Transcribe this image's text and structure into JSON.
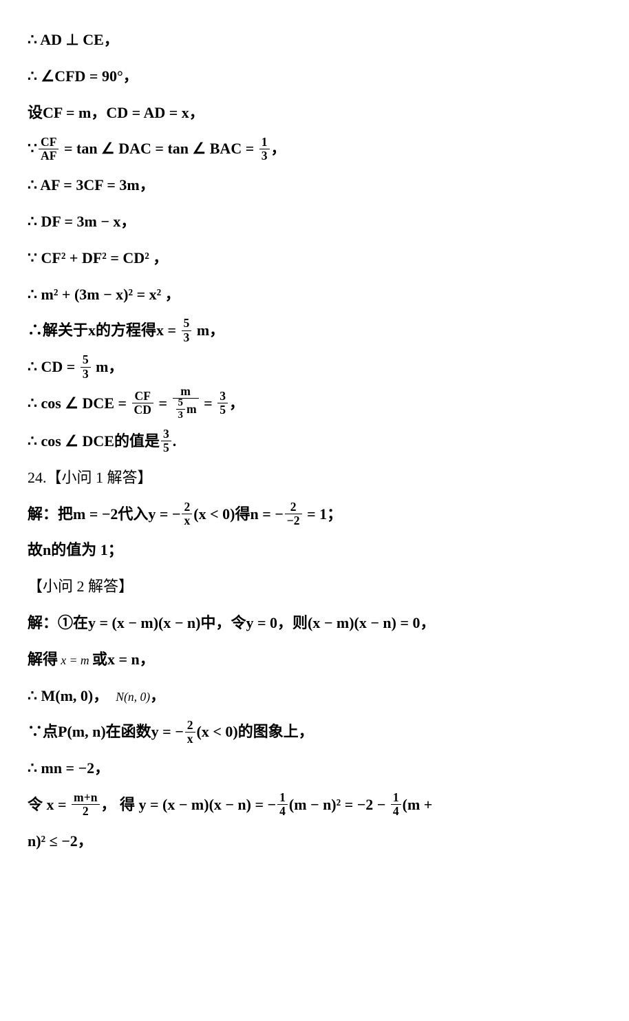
{
  "lines": {
    "l1": "∴ AD ⊥ CE，",
    "l2": "∴ ∠CFD = 90°，",
    "l3a": "设CF = m，CD = AD = x，",
    "l4a": "∵",
    "l4_num": "CF",
    "l4_den": "AF",
    "l4b": " = tan ∠ DAC = tan ∠ BAC = ",
    "l4c_num": "1",
    "l4c_den": "3",
    "l4d": "，",
    "l5": "∴ AF = 3CF = 3m，",
    "l6": "∴ DF = 3m − x，",
    "l7": "∵ CF² + DF² = CD² ，",
    "l8": "∴ m² + (3m − x)² = x² ，",
    "l9a": "∴解关于x的方程得x = ",
    "l9_num": "5",
    "l9_den": "3",
    "l9b": " m，",
    "l10a": "∴ CD = ",
    "l10_num": "5",
    "l10_den": "3",
    "l10b": " m，",
    "l11a": "∴ cos ∠ DCE = ",
    "l11_num1": "CF",
    "l11_den1": "CD",
    "l11b": " = ",
    "l11_num2": "m",
    "l11_den2_num": "5",
    "l11_den2_den": "3",
    "l11_den2_suf": "m",
    "l11c": " = ",
    "l11_num3": "3",
    "l11_den3": "5",
    "l11d": "，",
    "l12a": "∴ cos ∠ DCE的值是",
    "l12_num": "3",
    "l12_den": "5",
    "l12b": ".",
    "q24": "24.【小问 1 解答】",
    "l13a": "解：把m = −2代入y = −",
    "l13_num1": "2",
    "l13_den1": "x",
    "l13b": "(x < 0)得n = −",
    "l13_num2": "2",
    "l13_den2": "−2",
    "l13c": " = 1；",
    "l14": "故n的值为 1；",
    "q24b": "【小问 2 解答】",
    "l15": "解：①在y = (x − m)(x − n)中，令y = 0，则(x − m)(x − n) = 0，",
    "l16a": "解得",
    "l16_small": " x = m ",
    "l16b": "或x = n，",
    "l17a": "∴ M(m, 0)，",
    "l17_small": "N(n, 0)",
    "l17b": "，",
    "l18a": "∵点P(m, n)在函数y = −",
    "l18_num": "2",
    "l18_den": "x",
    "l18b": "(x < 0)的图象上，",
    "l19": "∴ mn = −2，",
    "l20a": "令 x = ",
    "l20_num1": "m+n",
    "l20_den1": "2",
    "l20b": "， 得 y = (x − m)(x − n) = −",
    "l20_num2": "1",
    "l20_den2": "4",
    "l20c": "(m − n)² = −2 − ",
    "l20_num3": "1",
    "l20_den3": "4",
    "l20d": "(m +",
    "l21": "n)² ≤ −2，"
  }
}
